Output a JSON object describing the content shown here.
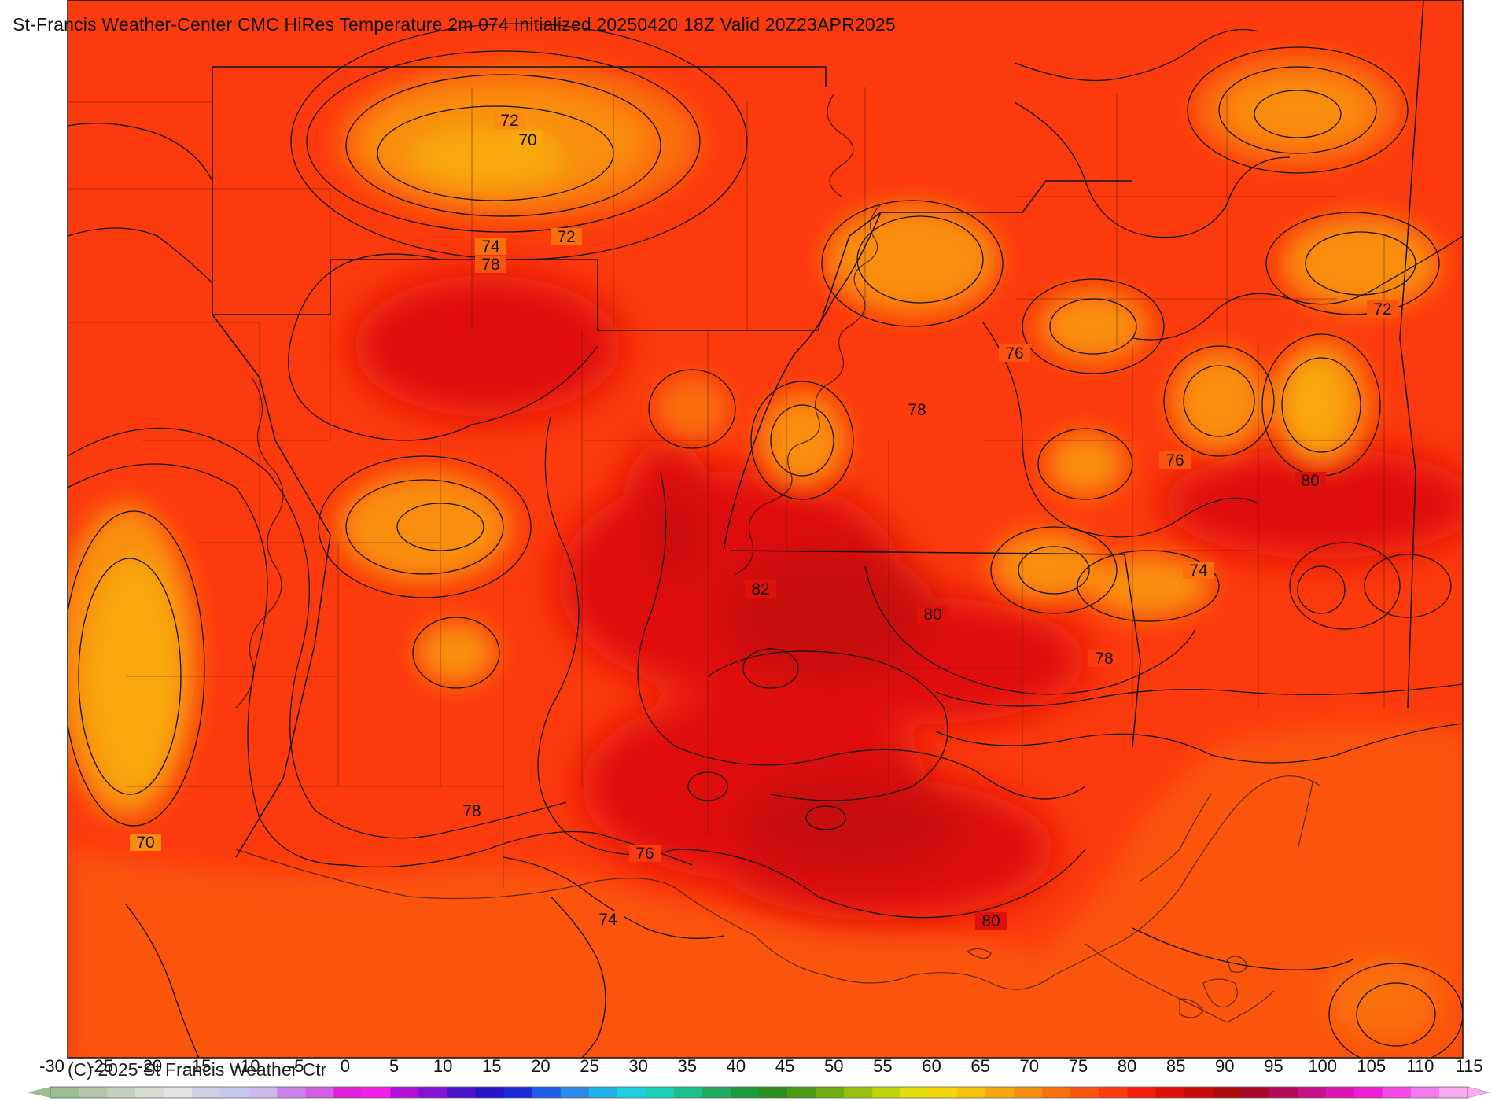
{
  "title": "St-Francis Weather-Center CMC HiRes Temperature 2m  074 Initialized 20250420 18Z Valid 20Z23APR2025",
  "copyright": "(C) 2025 St Francis Weather Ctr",
  "contour_labels": [
    "72",
    "70",
    "72",
    "74",
    "78",
    "76",
    "78",
    "72",
    "76",
    "80",
    "82",
    "80",
    "74",
    "78",
    "78",
    "70",
    "76",
    "74",
    "80"
  ],
  "colorbar": {
    "ticks": [
      "-30",
      "-25",
      "-20",
      "-15",
      "-10",
      "-5",
      "0",
      "5",
      "10",
      "15",
      "20",
      "25",
      "30",
      "35",
      "40",
      "45",
      "50",
      "55",
      "60",
      "65",
      "70",
      "75",
      "80",
      "85",
      "90",
      "95",
      "100",
      "105",
      "110",
      "115"
    ],
    "colors": [
      "#9bbd94",
      "#b3c6aa",
      "#c5cfbd",
      "#d6dcd0",
      "#e4e4e4",
      "#cfcfe6",
      "#c8c8ec",
      "#cfb7f0",
      "#cb82ea",
      "#d25fe3",
      "#e21ed9",
      "#f21ee8",
      "#b30fd8",
      "#8014d2",
      "#4a12cc",
      "#2615c8",
      "#1b2ad6",
      "#1f5ce6",
      "#2a8ae9",
      "#21b2ea",
      "#1bcfe0",
      "#1bd0b5",
      "#1bbf8a",
      "#21ab5f",
      "#1d9b3a",
      "#2a8f1f",
      "#4a9a14",
      "#6fae10",
      "#98c10c",
      "#c2d40a",
      "#e5df09",
      "#f5d60a",
      "#f7c20b",
      "#f8a80d",
      "#f98d0f",
      "#fa700f",
      "#fb540f",
      "#fb3a0d",
      "#f51d0b",
      "#e0110a",
      "#c80b0a",
      "#b00909",
      "#a8082a",
      "#b2095a",
      "#c7108a",
      "#de15b5",
      "#ef1ed6",
      "#f549e6",
      "#f779ee",
      "#f9aaf3"
    ]
  }
}
